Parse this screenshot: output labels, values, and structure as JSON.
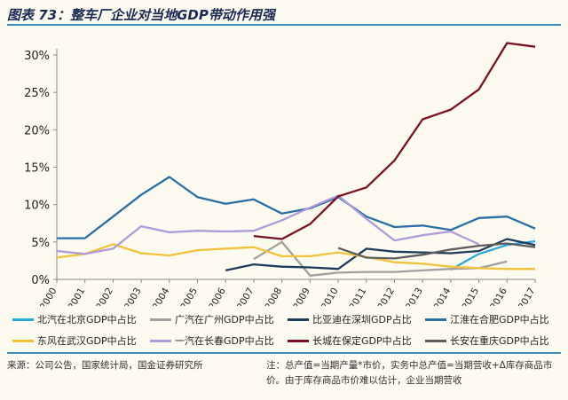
{
  "title": "图表 73：整车厂企业对当地GDP带动作用强",
  "source": "来源：公司公告，国家统计局，国金证券研究所",
  "note": "注：总产值=当期产量*市价，实务中总产值=当期营收+Δ库存商品市价。由于库存商品市价难以估计，企业当期营收",
  "chart_data": {
    "type": "line",
    "x": [
      "2000",
      "2001",
      "2002",
      "2003",
      "2004",
      "2005",
      "2006",
      "2007",
      "2008",
      "2009",
      "2010",
      "2011",
      "2012",
      "2013",
      "2014",
      "2015",
      "2016",
      "2017"
    ],
    "yticks": [
      "0%",
      "5%",
      "10%",
      "15%",
      "20%",
      "25%",
      "30%"
    ],
    "ylim": [
      0,
      32
    ],
    "grid": false,
    "legend": "bottom",
    "series": [
      {
        "name": "北汽在北京GDP中占比",
        "color": "#29a8dc",
        "values": [
          null,
          null,
          null,
          null,
          null,
          null,
          null,
          null,
          null,
          null,
          null,
          null,
          null,
          null,
          1.3,
          3.4,
          4.6,
          5.1
        ]
      },
      {
        "name": "广汽在广州GDP中占比",
        "color": "#a0a0a0",
        "values": [
          null,
          null,
          null,
          null,
          null,
          null,
          null,
          2.7,
          5.0,
          0.5,
          0.9,
          1.0,
          1.0,
          1.2,
          1.4,
          1.5,
          2.4,
          null
        ]
      },
      {
        "name": "比亚迪在深圳GDP占比",
        "color": "#1f3b5c",
        "values": [
          null,
          null,
          null,
          null,
          null,
          null,
          1.2,
          2.0,
          1.7,
          1.6,
          1.4,
          4.1,
          3.7,
          3.6,
          3.5,
          3.8,
          5.4,
          4.6
        ]
      },
      {
        "name": "江淮在合肥GDP中占比",
        "color": "#2a6fa3",
        "values": [
          5.5,
          5.5,
          8.4,
          11.3,
          13.7,
          11.0,
          10.1,
          10.7,
          8.8,
          9.5,
          11.0,
          8.4,
          7.0,
          7.2,
          6.6,
          8.2,
          8.4,
          6.8
        ]
      },
      {
        "name": "东风在武汉GDP中占比",
        "color": "#f2c23a",
        "values": [
          2.9,
          3.4,
          4.7,
          3.5,
          3.2,
          3.9,
          4.1,
          4.3,
          3.1,
          3.1,
          3.6,
          3.0,
          2.3,
          2.1,
          1.7,
          1.5,
          1.4,
          1.4
        ]
      },
      {
        "name": "一汽在长春GDP中占比",
        "color": "#b09ad8",
        "values": [
          3.8,
          3.4,
          4.1,
          7.1,
          6.3,
          6.5,
          6.4,
          6.5,
          7.9,
          9.6,
          11.2,
          8.1,
          5.2,
          5.9,
          6.4,
          4.7,
          null,
          null
        ]
      },
      {
        "name": "长城在保定GDP中占比",
        "color": "#7a1020",
        "values": [
          null,
          null,
          null,
          null,
          null,
          null,
          null,
          5.8,
          5.4,
          7.4,
          11.1,
          12.3,
          15.9,
          21.4,
          22.7,
          25.4,
          31.6,
          31.1
        ]
      },
      {
        "name": "长安在重庆GDP中占比",
        "color": "#5e5e5e",
        "values": [
          null,
          null,
          null,
          null,
          null,
          null,
          null,
          null,
          null,
          null,
          4.2,
          2.9,
          2.8,
          3.3,
          4.0,
          4.5,
          4.8,
          4.3
        ]
      }
    ]
  }
}
